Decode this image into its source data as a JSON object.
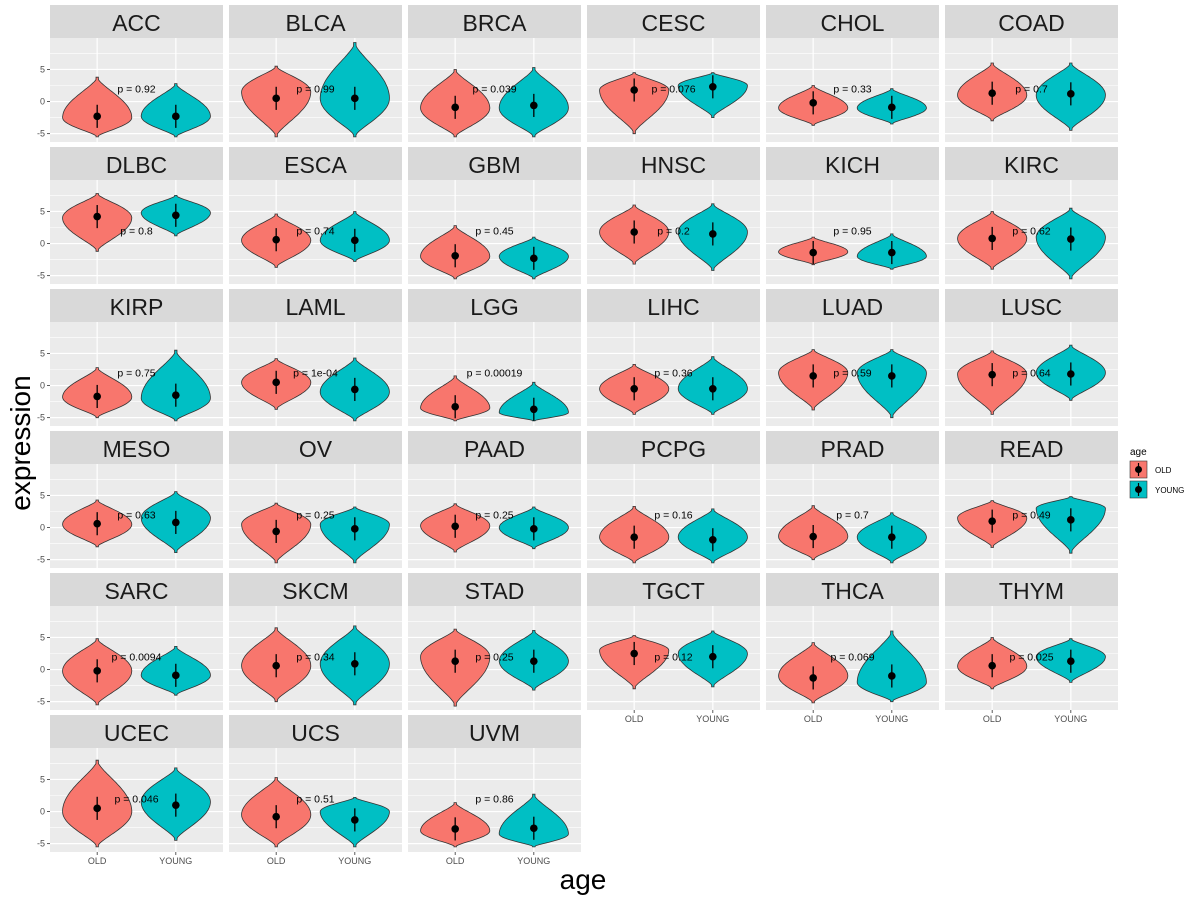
{
  "chart_data": {
    "type": "violin",
    "facet_by": "cancer type",
    "xlabel": "age",
    "ylabel": "expression",
    "ylim": [
      -6.3,
      9.9
    ],
    "yticks": [
      "5",
      "0",
      "-5"
    ],
    "ytick_values": [
      5,
      0,
      -5
    ],
    "xticks": [
      "OLD",
      "YOUNG"
    ],
    "legend": {
      "title": "age",
      "entries": [
        "OLD",
        "YOUNG"
      ],
      "placement": "right"
    },
    "colors": {
      "OLD": "#F8766D",
      "YOUNG": "#00BFC4"
    },
    "error_bar_sd": 1.8,
    "p_label_position": {
      "x": 1.5,
      "y": 2
    },
    "panels": [
      {
        "name": "ACC",
        "p": "p = 0.92",
        "old": {
          "min": -5.5,
          "max": 3.8,
          "mode": -2.5,
          "mean": -2.3
        },
        "young": {
          "min": -5.5,
          "max": 2.8,
          "mode": -2.3,
          "mean": -2.3
        }
      },
      {
        "name": "BLCA",
        "p": "p = 0.99",
        "old": {
          "min": -5.5,
          "max": 5.5,
          "mode": 1.5,
          "mean": 0.5
        },
        "young": {
          "min": -5.5,
          "max": 9.2,
          "mode": 0.5,
          "mean": 0.5
        }
      },
      {
        "name": "BRCA",
        "p": "p = 0.039",
        "old": {
          "min": -5.5,
          "max": 5.0,
          "mode": -1.0,
          "mean": -0.9
        },
        "young": {
          "min": -5.5,
          "max": 5.3,
          "mode": -1.0,
          "mean": -0.6
        }
      },
      {
        "name": "CESC",
        "p": "p = 0.076",
        "old": {
          "min": -5.0,
          "max": 4.5,
          "mode": 1.8,
          "mean": 1.8
        },
        "young": {
          "min": -2.5,
          "max": 4.5,
          "mode": 2.5,
          "mean": 2.3
        }
      },
      {
        "name": "CHOL",
        "p": "p = 0.33",
        "old": {
          "min": -3.7,
          "max": 2.5,
          "mode": -1.0,
          "mean": -0.2
        },
        "young": {
          "min": -3.5,
          "max": 2.0,
          "mode": -1.0,
          "mean": -0.9
        }
      },
      {
        "name": "COAD",
        "p": "p = 0.7",
        "old": {
          "min": -3.0,
          "max": 6.0,
          "mode": 1.0,
          "mean": 1.3
        },
        "young": {
          "min": -4.5,
          "max": 6.0,
          "mode": 1.0,
          "mean": 1.2
        }
      },
      {
        "name": "DLBC",
        "p": "p = 0.8",
        "old": {
          "min": -1.2,
          "max": 7.8,
          "mode": 4.0,
          "mean": 4.2
        },
        "young": {
          "min": 1.2,
          "max": 7.5,
          "mode": 4.8,
          "mean": 4.4
        }
      },
      {
        "name": "ESCA",
        "p": "p = 0.74",
        "old": {
          "min": -3.7,
          "max": 4.6,
          "mode": 0.5,
          "mean": 0.6
        },
        "young": {
          "min": -2.8,
          "max": 5.0,
          "mode": 0.5,
          "mean": 0.5
        }
      },
      {
        "name": "GBM",
        "p": "p = 0.45",
        "old": {
          "min": -5.5,
          "max": 2.8,
          "mode": -2.0,
          "mean": -1.9
        },
        "young": {
          "min": -5.5,
          "max": 1.0,
          "mode": -2.0,
          "mean": -2.3
        }
      },
      {
        "name": "HNSC",
        "p": "p = 0.2",
        "old": {
          "min": -3.2,
          "max": 6.0,
          "mode": 1.8,
          "mean": 1.8
        },
        "young": {
          "min": -4.2,
          "max": 6.2,
          "mode": 1.8,
          "mean": 1.5
        }
      },
      {
        "name": "KICH",
        "p": "p = 0.95",
        "old": {
          "min": -3.3,
          "max": 1.0,
          "mode": -1.3,
          "mean": -1.4
        },
        "young": {
          "min": -4.0,
          "max": 1.5,
          "mode": -2.0,
          "mean": -1.4
        }
      },
      {
        "name": "KIRC",
        "p": "p = 0.62",
        "old": {
          "min": -4.0,
          "max": 5.0,
          "mode": 0.8,
          "mean": 0.8
        },
        "young": {
          "min": -5.5,
          "max": 5.5,
          "mode": 1.0,
          "mean": 0.7
        }
      },
      {
        "name": "KIRP",
        "p": "p = 0.75",
        "old": {
          "min": -5.0,
          "max": 2.8,
          "mode": -1.8,
          "mean": -1.7
        },
        "young": {
          "min": -5.5,
          "max": 5.5,
          "mode": -2.0,
          "mean": -1.5
        }
      },
      {
        "name": "LAML",
        "p": "p = 1e-04",
        "old": {
          "min": -3.7,
          "max": 4.2,
          "mode": 0.5,
          "mean": 0.5
        },
        "young": {
          "min": -5.5,
          "max": 4.3,
          "mode": -1.0,
          "mean": -0.6
        }
      },
      {
        "name": "LGG",
        "p": "p = 0.00019",
        "old": {
          "min": -5.5,
          "max": 1.5,
          "mode": -3.5,
          "mean": -3.3
        },
        "young": {
          "min": -5.5,
          "max": 0.5,
          "mode": -4.2,
          "mean": -3.7
        }
      },
      {
        "name": "LIHC",
        "p": "p = 0.36",
        "old": {
          "min": -4.5,
          "max": 3.3,
          "mode": -0.5,
          "mean": -0.5
        },
        "young": {
          "min": -4.5,
          "max": 4.5,
          "mode": -0.5,
          "mean": -0.5
        }
      },
      {
        "name": "LUAD",
        "p": "p = 0.59",
        "old": {
          "min": -3.8,
          "max": 5.6,
          "mode": 2.0,
          "mean": 1.5
        },
        "young": {
          "min": -5.0,
          "max": 5.6,
          "mode": 2.0,
          "mean": 1.5
        }
      },
      {
        "name": "LUSC",
        "p": "p = 0.64",
        "old": {
          "min": -4.5,
          "max": 5.4,
          "mode": 1.8,
          "mean": 1.7
        },
        "young": {
          "min": -2.3,
          "max": 6.3,
          "mode": 2.0,
          "mean": 1.8
        }
      },
      {
        "name": "MESO",
        "p": "p = 0.63",
        "old": {
          "min": -3.0,
          "max": 4.3,
          "mode": 0.5,
          "mean": 0.6
        },
        "young": {
          "min": -3.9,
          "max": 5.6,
          "mode": 1.5,
          "mean": 0.8
        }
      },
      {
        "name": "OV",
        "p": "p = 0.25",
        "old": {
          "min": -5.5,
          "max": 3.8,
          "mode": 0.5,
          "mean": -0.6
        },
        "young": {
          "min": -5.5,
          "max": 3.2,
          "mode": 0.5,
          "mean": -0.2
        }
      },
      {
        "name": "PAAD",
        "p": "p = 0.25",
        "old": {
          "min": -3.8,
          "max": 3.7,
          "mode": 0.3,
          "mean": 0.2
        },
        "young": {
          "min": -3.3,
          "max": 3.2,
          "mode": 0.0,
          "mean": -0.2
        }
      },
      {
        "name": "PCPG",
        "p": "p = 0.16",
        "old": {
          "min": -5.5,
          "max": 3.3,
          "mode": -1.5,
          "mean": -1.5
        },
        "young": {
          "min": -5.5,
          "max": 2.9,
          "mode": -1.5,
          "mean": -1.9
        }
      },
      {
        "name": "PRAD",
        "p": "p = 0.7",
        "old": {
          "min": -5.0,
          "max": 3.4,
          "mode": -1.4,
          "mean": -1.4
        },
        "young": {
          "min": -5.5,
          "max": 2.3,
          "mode": -1.5,
          "mean": -1.5
        }
      },
      {
        "name": "READ",
        "p": "p = 0.49",
        "old": {
          "min": -3.1,
          "max": 4.2,
          "mode": 1.5,
          "mean": 1.0
        },
        "young": {
          "min": -4.0,
          "max": 4.8,
          "mode": 3.0,
          "mean": 1.2
        }
      },
      {
        "name": "SARC",
        "p": "p = 0.0094",
        "old": {
          "min": -5.5,
          "max": 4.8,
          "mode": -0.2,
          "mean": -0.2
        },
        "young": {
          "min": -4.0,
          "max": 3.6,
          "mode": -0.9,
          "mean": -0.9
        }
      },
      {
        "name": "SKCM",
        "p": "p = 0.34",
        "old": {
          "min": -5.0,
          "max": 6.5,
          "mode": 0.6,
          "mean": 0.6
        },
        "young": {
          "min": -5.5,
          "max": 6.8,
          "mode": 0.9,
          "mean": 0.9
        }
      },
      {
        "name": "STAD",
        "p": "p = 0.25",
        "old": {
          "min": -5.7,
          "max": 6.3,
          "mode": 2.0,
          "mean": 1.3
        },
        "young": {
          "min": -3.2,
          "max": 6.1,
          "mode": 1.3,
          "mean": 1.3
        }
      },
      {
        "name": "TGCT",
        "p": "p = 0.12",
        "old": {
          "min": -3.0,
          "max": 5.3,
          "mode": 3.0,
          "mean": 2.5
        },
        "young": {
          "min": -2.7,
          "max": 6.0,
          "mode": 2.5,
          "mean": 2.0
        }
      },
      {
        "name": "THCA",
        "p": "p = 0.069",
        "old": {
          "min": -5.2,
          "max": 4.2,
          "mode": -1.0,
          "mean": -1.3
        },
        "young": {
          "min": -5.0,
          "max": 6.0,
          "mode": -2.0,
          "mean": -1.0
        }
      },
      {
        "name": "THYM",
        "p": "p = 0.025",
        "old": {
          "min": -3.0,
          "max": 5.0,
          "mode": 0.5,
          "mean": 0.6
        },
        "young": {
          "min": -2.0,
          "max": 4.8,
          "mode": 2.0,
          "mean": 1.3
        }
      },
      {
        "name": "UCEC",
        "p": "p = 0.046",
        "old": {
          "min": -5.5,
          "max": 8.0,
          "mode": 0.0,
          "mean": 0.5
        },
        "young": {
          "min": -4.5,
          "max": 6.8,
          "mode": 1.5,
          "mean": 1.0
        }
      },
      {
        "name": "UCS",
        "p": "p = 0.51",
        "old": {
          "min": -5.5,
          "max": 5.3,
          "mode": -0.5,
          "mean": -0.8
        },
        "young": {
          "min": -5.5,
          "max": 2.2,
          "mode": 0.0,
          "mean": -1.3
        }
      },
      {
        "name": "UVM",
        "p": "p = 0.86",
        "old": {
          "min": -5.5,
          "max": 1.4,
          "mode": -3.0,
          "mean": -2.7
        },
        "young": {
          "min": -5.5,
          "max": 2.7,
          "mode": -3.5,
          "mean": -2.6
        }
      }
    ]
  }
}
